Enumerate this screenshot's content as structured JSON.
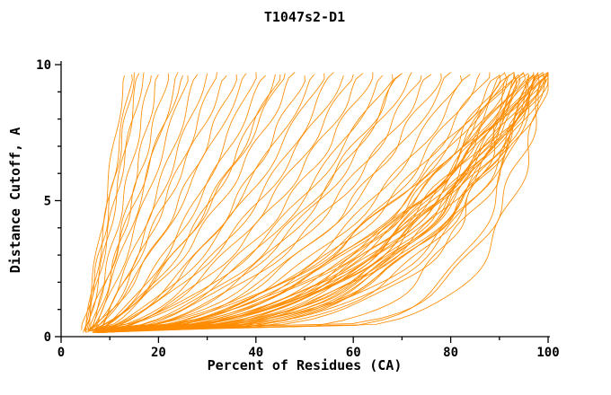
{
  "chart_data": {
    "type": "line",
    "title": "T1047s2-D1",
    "xlabel": "Percent of Residues (CA)",
    "ylabel": "Distance Cutoff, A",
    "xlim": [
      0,
      100
    ],
    "ylim": [
      0,
      10
    ],
    "x_ticks": [
      0,
      20,
      40,
      60,
      80,
      100
    ],
    "x_minor_step": 10,
    "y_ticks": [
      0,
      5,
      10
    ],
    "y_minor_step": 1,
    "grid": false,
    "legend": "none",
    "line_color": "#ff8c00",
    "axis_color": "#000000",
    "y_start": 0.15,
    "y_top": 9.65,
    "curve_model": "Each GDT curve is cumulative: x(y) = x_start + (x_top - x_start) * ((y - y_start)/(y_top - y_start))^(1/p); triples below are [x_start_percent, x_top_percent, p]",
    "curves": [
      [
        4.5,
        13,
        1.1
      ],
      [
        5,
        14.5,
        1.0
      ],
      [
        4.8,
        16,
        1.2
      ],
      [
        5.5,
        17,
        0.95
      ],
      [
        6,
        18.5,
        1.1
      ],
      [
        5.2,
        20,
        1.3
      ],
      [
        6.5,
        22,
        1.05
      ],
      [
        5.8,
        24,
        1.2
      ],
      [
        7,
        26,
        1.1
      ],
      [
        6.2,
        28,
        1.3
      ],
      [
        7.5,
        30,
        1.15
      ],
      [
        6.8,
        32,
        1.25
      ],
      [
        7.2,
        34,
        1.1
      ],
      [
        5.5,
        36,
        1.4
      ],
      [
        6,
        38,
        1.3
      ],
      [
        6.5,
        40,
        1.5
      ],
      [
        7,
        42,
        1.35
      ],
      [
        5.8,
        44,
        1.6
      ],
      [
        6.3,
        46,
        1.45
      ],
      [
        7.2,
        48,
        1.5
      ],
      [
        6.6,
        50,
        1.7
      ],
      [
        7.4,
        52,
        1.55
      ],
      [
        6.9,
        54,
        1.6
      ],
      [
        7.6,
        56,
        1.75
      ],
      [
        7.1,
        58,
        1.65
      ],
      [
        7.8,
        60,
        1.7
      ],
      [
        6.5,
        62,
        1.8
      ],
      [
        7,
        64,
        1.9
      ],
      [
        7.5,
        66,
        2.0
      ],
      [
        6.8,
        68,
        1.85
      ],
      [
        7.2,
        70,
        2.1
      ],
      [
        7.7,
        72,
        1.95
      ],
      [
        7,
        74,
        2.2
      ],
      [
        7.4,
        76,
        2.05
      ],
      [
        7.8,
        78,
        2.3
      ],
      [
        7.1,
        80,
        2.15
      ],
      [
        7.5,
        82,
        2.4
      ],
      [
        7.9,
        84,
        2.25
      ],
      [
        7.3,
        86,
        2.5
      ],
      [
        7.6,
        88,
        2.35
      ],
      [
        6.5,
        90,
        2.2
      ],
      [
        7,
        90,
        2.8
      ],
      [
        7.5,
        91,
        2.4
      ],
      [
        6.8,
        91,
        3.2
      ],
      [
        7.2,
        92,
        2.6
      ],
      [
        7.6,
        92,
        3.0
      ],
      [
        6.9,
        93,
        2.3
      ],
      [
        7.3,
        93,
        3.4
      ],
      [
        7.7,
        94,
        2.7
      ],
      [
        7,
        94,
        3.1
      ],
      [
        7.4,
        95,
        2.5
      ],
      [
        7.8,
        95,
        3.5
      ],
      [
        7.1,
        96,
        2.9
      ],
      [
        7.5,
        96,
        3.3
      ],
      [
        6.7,
        96,
        2.4
      ],
      [
        7.9,
        97,
        3.0
      ],
      [
        7.2,
        97,
        3.6
      ],
      [
        7.6,
        97,
        2.6
      ],
      [
        6.9,
        98,
        3.2
      ],
      [
        7.3,
        98,
        2.8
      ],
      [
        7.7,
        98,
        3.8
      ],
      [
        7,
        99,
        3.0
      ],
      [
        7.4,
        99,
        3.4
      ],
      [
        7.8,
        99,
        2.7
      ],
      [
        7.1,
        99,
        4.0
      ],
      [
        7.5,
        100,
        3.1
      ],
      [
        6.8,
        100,
        3.6
      ],
      [
        7.2,
        100,
        2.9
      ],
      [
        7.6,
        100,
        4.2
      ],
      [
        7.9,
        100,
        3.3
      ],
      [
        8.2,
        95,
        2.2
      ],
      [
        8,
        93,
        2.0
      ],
      [
        8.4,
        97,
        2.45
      ],
      [
        8.1,
        98,
        2.15
      ],
      [
        8.3,
        99,
        2.55
      ],
      [
        8.5,
        100,
        2.35
      ],
      [
        8,
        93,
        6.0
      ],
      [
        8.5,
        97,
        7.0
      ],
      [
        9,
        100,
        8.0
      ],
      [
        8.2,
        100,
        6.5
      ],
      [
        5,
        25,
        1.0
      ],
      [
        5.5,
        45,
        1.5
      ],
      [
        6,
        70,
        2.0
      ],
      [
        4.2,
        15,
        1.15
      ]
    ]
  }
}
